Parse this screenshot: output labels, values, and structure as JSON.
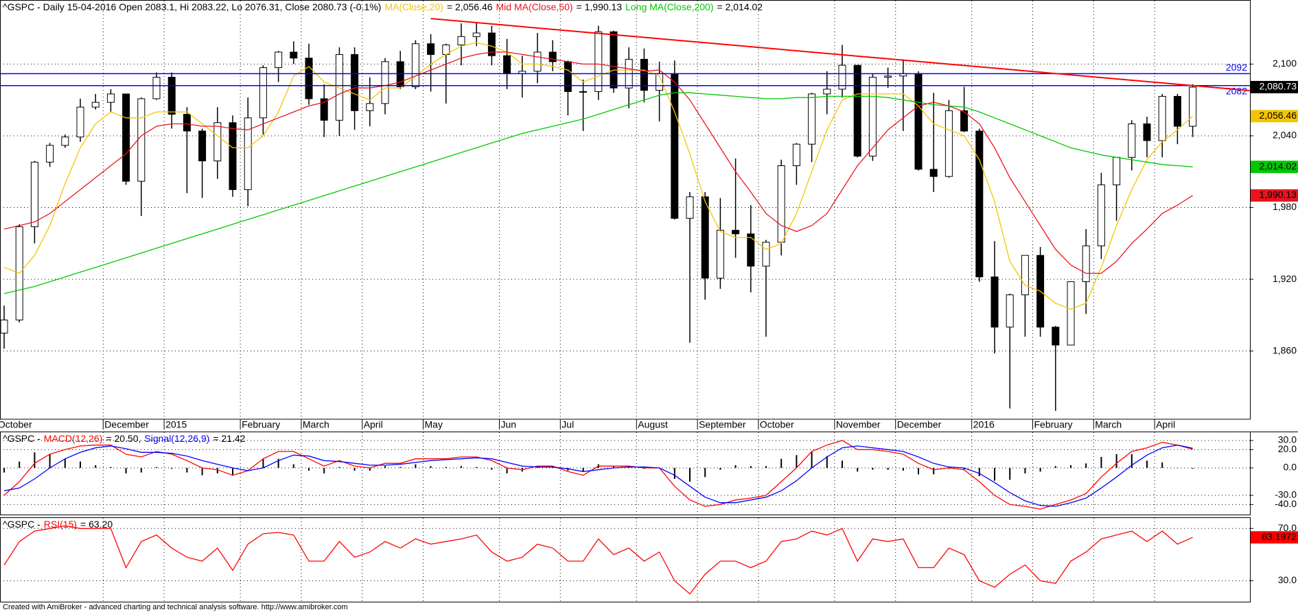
{
  "chart_data": [
    {
      "type": "candlestick",
      "title": "^GSPC - Daily 15-04-2016 Open 2083.1, Hi 2083.22, Lo 2076.31, Close 2080.73 (-0.1%)",
      "color": "#000000",
      "close_label": "2,080.73",
      "categories": [
        "October",
        null,
        null,
        null,
        null,
        null,
        null,
        "December",
        null,
        null,
        null,
        "2015",
        null,
        null,
        null,
        null,
        "February",
        null,
        null,
        null,
        "March",
        null,
        null,
        null,
        "April",
        null,
        null,
        null,
        "May",
        null,
        null,
        null,
        null,
        "Jun",
        null,
        null,
        null,
        "Jul",
        null,
        null,
        null,
        null,
        "August",
        null,
        null,
        null,
        "September",
        null,
        null,
        null,
        "October",
        null,
        null,
        null,
        null,
        "November",
        null,
        null,
        null,
        "December",
        null,
        null,
        null,
        null,
        "2016",
        null,
        null,
        null,
        "February",
        null,
        null,
        null,
        "March",
        null,
        null,
        null,
        "April",
        null,
        null
      ],
      "open": [
        1875,
        1886,
        1964,
        2018,
        2032,
        2039,
        2064,
        2068,
        2075,
        2002,
        2071,
        2089,
        2058,
        2044,
        2019,
        2051,
        1995,
        2055,
        2097,
        2110,
        2105,
        2071,
        2053,
        2108,
        2061,
        2067,
        2102,
        2081,
        2117,
        2108,
        2116,
        2123,
        2126,
        2107,
        2092,
        2094,
        2110,
        2102,
        2077,
        2077,
        2127,
        2080,
        2104,
        2078,
        2092,
        1971,
        1989,
        1921,
        1961,
        1958,
        1931,
        1951,
        2015,
        2033,
        2075,
        2079,
        2099,
        2023,
        2089,
        2090,
        2092,
        2012,
        2006,
        2061,
        2044,
        1922,
        1880,
        1907,
        1940,
        1880,
        1865,
        1918,
        1948,
        1999,
        2022,
        2050,
        2036,
        2073,
        2048
      ],
      "high": [
        1898,
        1966,
        2019,
        2034,
        2041,
        2071,
        2075,
        2079,
        2075,
        2072,
        2093,
        2093,
        2064,
        2046,
        2064,
        2057,
        2072,
        2099,
        2111,
        2119,
        2117,
        2083,
        2114,
        2114,
        2089,
        2105,
        2111,
        2120,
        2125,
        2117,
        2134,
        2135,
        2132,
        2121,
        2107,
        2126,
        2120,
        2103,
        2087,
        2132,
        2128,
        2114,
        2113,
        2102,
        2103,
        1993,
        1993,
        1988,
        2021,
        1982,
        1953,
        2020,
        2034,
        2076,
        2094,
        2116,
        2099,
        2092,
        2097,
        2104,
        2094,
        2076,
        2070,
        2081,
        2046,
        1952,
        1908,
        1940,
        1947,
        1881,
        1918,
        1962,
        2009,
        2022,
        2053,
        2056,
        2075,
        2075,
        2083.22
      ],
      "low": [
        1862,
        1884,
        1950,
        2014,
        2030,
        2035,
        2062,
        2060,
        1999,
        1973,
        2070,
        2046,
        1992,
        1988,
        2004,
        1989,
        1981,
        2041,
        2085,
        2100,
        2066,
        2039,
        2040,
        2045,
        2048,
        2058,
        2079,
        2079,
        2077,
        2067,
        2099,
        2115,
        2099,
        2079,
        2072,
        2084,
        2094,
        2057,
        2044,
        2070,
        2076,
        2063,
        2068,
        2052,
        1970,
        1867,
        1903,
        1912,
        1938,
        1909,
        1872,
        1940,
        1999,
        2018,
        2058,
        2072,
        2022,
        2019,
        2080,
        2044,
        2011,
        1993,
        2005,
        2043,
        1918,
        1858,
        1812,
        1872,
        1872,
        1810,
        1865,
        1891,
        1937,
        1969,
        2011,
        2022,
        2022,
        2033,
        2039
      ],
      "close": [
        1886,
        1964,
        2018,
        2032,
        2039,
        2064,
        2068,
        2075,
        2002,
        2071,
        2089,
        2058,
        2044,
        2019,
        2051,
        1995,
        2055,
        2097,
        2110,
        2105,
        2071,
        2053,
        2108,
        2061,
        2067,
        2102,
        2081,
        2117,
        2108,
        2116,
        2123,
        2126,
        2107,
        2092,
        2094,
        2110,
        2102,
        2077,
        2077,
        2127,
        2080,
        2104,
        2078,
        2092,
        1971,
        1989,
        1921,
        1961,
        1958,
        1931,
        1951,
        2015,
        2033,
        2075,
        2079,
        2099,
        2023,
        2089,
        2090,
        2092,
        2012,
        2006,
        2061,
        2044,
        1922,
        1880,
        1907,
        1940,
        1880,
        1865,
        1918,
        1948,
        1999,
        2022,
        2050,
        2036,
        2073,
        2048,
        2080.73
      ],
      "series": [
        {
          "name": "MA(Close,20)",
          "color": "#f5c400",
          "readout": "= 2,056.46",
          "last_label": "2,056.46",
          "values": [
            1930,
            1925,
            1940,
            1965,
            2000,
            2030,
            2050,
            2060,
            2055,
            2055,
            2060,
            2060,
            2060,
            2050,
            2040,
            2030,
            2030,
            2040,
            2060,
            2090,
            2098,
            2085,
            2080,
            2075,
            2070,
            2080,
            2080,
            2090,
            2100,
            2108,
            2115,
            2118,
            2115,
            2110,
            2100,
            2100,
            2098,
            2095,
            2085,
            2090,
            2095,
            2095,
            2095,
            2090,
            2060,
            2025,
            1985,
            1960,
            1955,
            1955,
            1945,
            1950,
            1975,
            2010,
            2045,
            2070,
            2075,
            2075,
            2075,
            2075,
            2065,
            2050,
            2045,
            2040,
            2020,
            1985,
            1935,
            1915,
            1910,
            1900,
            1895,
            1900,
            1930,
            1965,
            1995,
            2020,
            2035,
            2045,
            2056.46
          ]
        },
        {
          "name": "Mid MA(Close,50)",
          "color": "#e8141e",
          "readout": "= 1,990.13",
          "last_label": "1,990.13",
          "values": [
            1962,
            1965,
            1968,
            1975,
            1985,
            1995,
            2005,
            2015,
            2025,
            2040,
            2048,
            2050,
            2050,
            2048,
            2048,
            2046,
            2045,
            2050,
            2055,
            2060,
            2065,
            2068,
            2075,
            2080,
            2080,
            2082,
            2085,
            2090,
            2095,
            2100,
            2105,
            2108,
            2110,
            2110,
            2108,
            2106,
            2104,
            2102,
            2100,
            2100,
            2098,
            2096,
            2094,
            2095,
            2085,
            2070,
            2050,
            2030,
            2010,
            1993,
            1975,
            1965,
            1960,
            1965,
            1975,
            1995,
            2015,
            2030,
            2045,
            2055,
            2065,
            2068,
            2065,
            2060,
            2050,
            2030,
            2005,
            1985,
            1965,
            1945,
            1932,
            1925,
            1925,
            1935,
            1950,
            1962,
            1975,
            1982,
            1990.13
          ]
        },
        {
          "name": "Long MA(Close,200)",
          "color": "#00c800",
          "readout": "= 2,014.02",
          "last_label": "2,014.02",
          "values": [
            1908,
            1911,
            1914,
            1918,
            1922,
            1926,
            1930,
            1934,
            1938,
            1942,
            1946,
            1950,
            1954,
            1958,
            1962,
            1966,
            1970,
            1974,
            1978,
            1982,
            1986,
            1990,
            1994,
            1998,
            2002,
            2006,
            2010,
            2014,
            2018,
            2022,
            2026,
            2030,
            2034,
            2038,
            2042,
            2045,
            2048,
            2051,
            2054,
            2058,
            2062,
            2066,
            2070,
            2074,
            2076,
            2076,
            2075,
            2074,
            2073,
            2072,
            2071,
            2071,
            2072,
            2072,
            2073,
            2073,
            2073,
            2073,
            2072,
            2070,
            2068,
            2066,
            2065,
            2064,
            2060,
            2055,
            2050,
            2045,
            2040,
            2035,
            2030,
            2027,
            2024,
            2022,
            2020,
            2018,
            2016,
            2015,
            2014.02
          ]
        }
      ],
      "levels": {
        "color": "#0000ff",
        "lines": [
          {
            "value": 2092,
            "label": "2092"
          },
          {
            "value": 2082,
            "label": "2082"
          }
        ]
      },
      "trendline": {
        "color": "#ff0000",
        "from": {
          "category": 28,
          "value": 2138
        },
        "to": {
          "category": 78,
          "value": 2082
        }
      },
      "ylim": [
        1803,
        2153
      ],
      "yticks": [
        {
          "value": 1860,
          "label": "1,860"
        },
        {
          "value": 1920,
          "label": "1,920"
        },
        {
          "value": 1980,
          "label": "1,980"
        },
        {
          "value": 2040,
          "label": "2,040"
        },
        {
          "value": 2100,
          "label": "2,100"
        }
      ],
      "grid": true
    },
    {
      "type": "line",
      "title": "^GSPC -",
      "series": [
        {
          "name": "MACD(12,26)",
          "color": "#ff0000",
          "readout": "= 20.50,",
          "values": [
            -30,
            -15,
            5,
            15,
            20,
            24,
            25,
            25,
            15,
            12,
            18,
            15,
            8,
            0,
            -2,
            -8,
            -3,
            10,
            18,
            18,
            10,
            2,
            8,
            2,
            0,
            5,
            5,
            10,
            10,
            10,
            12,
            12,
            8,
            0,
            -2,
            2,
            2,
            -4,
            -8,
            2,
            2,
            2,
            0,
            0,
            -20,
            -35,
            -42,
            -40,
            -35,
            -33,
            -30,
            -15,
            0,
            18,
            25,
            30,
            20,
            20,
            18,
            15,
            5,
            -2,
            0,
            -2,
            -15,
            -30,
            -40,
            -42,
            -45,
            -40,
            -35,
            -28,
            -10,
            5,
            18,
            22,
            28,
            25,
            20.5
          ]
        },
        {
          "name": "Signal(12,26,9)",
          "color": "#0000ff",
          "readout": "= 21.42",
          "values": [
            -25,
            -22,
            -12,
            0,
            10,
            17,
            22,
            24,
            21,
            17,
            17,
            16,
            13,
            8,
            4,
            0,
            -3,
            0,
            8,
            14,
            13,
            8,
            7,
            5,
            3,
            3,
            4,
            6,
            8,
            9,
            10,
            11,
            10,
            6,
            2,
            1,
            1,
            -1,
            -4,
            -2,
            0,
            1,
            1,
            0,
            -8,
            -20,
            -32,
            -38,
            -38,
            -35,
            -32,
            -25,
            -14,
            0,
            12,
            22,
            24,
            22,
            20,
            18,
            12,
            5,
            1,
            0,
            -6,
            -16,
            -27,
            -36,
            -41,
            -42,
            -38,
            -33,
            -22,
            -10,
            3,
            14,
            22,
            25,
            21.42
          ]
        }
      ],
      "histogram": {
        "color": "#000000",
        "values": [
          -5,
          7,
          17,
          15,
          10,
          7,
          3,
          1,
          -6,
          -5,
          1,
          -1,
          -5,
          -8,
          -6,
          -8,
          0,
          10,
          10,
          4,
          -3,
          -6,
          1,
          -3,
          -3,
          2,
          1,
          4,
          2,
          1,
          2,
          1,
          -2,
          -6,
          -4,
          1,
          1,
          -3,
          -4,
          4,
          2,
          1,
          -1,
          0,
          -12,
          -15,
          -10,
          -2,
          3,
          2,
          2,
          10,
          14,
          18,
          13,
          8,
          -4,
          -2,
          -2,
          -3,
          -7,
          -7,
          -1,
          -2,
          -9,
          -14,
          -13,
          -6,
          -4,
          2,
          3,
          5,
          12,
          15,
          15,
          8,
          6,
          0,
          -0.92
        ]
      },
      "ylim": [
        -51,
        39
      ],
      "yticks": [
        {
          "value": 30,
          "label": "30.0"
        },
        {
          "value": 20,
          "label": "20.0"
        },
        {
          "value": 0,
          "label": "0.0"
        },
        {
          "value": -30,
          "label": "-30.0"
        },
        {
          "value": -40,
          "label": "-40.0"
        }
      ],
      "grid": true
    },
    {
      "type": "line",
      "title": "^GSPC -",
      "series": [
        {
          "name": "RSI(15)",
          "color": "#ff0000",
          "readout": "= 63.20",
          "last_label": "63.1972",
          "values": [
            42,
            60,
            68,
            70,
            72,
            70,
            70,
            70,
            40,
            60,
            65,
            55,
            48,
            45,
            55,
            38,
            58,
            66,
            67,
            65,
            45,
            45,
            60,
            48,
            52,
            60,
            55,
            62,
            58,
            60,
            62,
            65,
            52,
            45,
            48,
            58,
            55,
            45,
            45,
            62,
            50,
            55,
            45,
            52,
            30,
            20,
            35,
            45,
            45,
            40,
            45,
            60,
            62,
            68,
            65,
            70,
            45,
            62,
            60,
            62,
            40,
            40,
            55,
            50,
            30,
            25,
            35,
            42,
            30,
            28,
            45,
            52,
            62,
            65,
            68,
            60,
            68,
            58,
            63.1972
          ]
        }
      ],
      "ylim": [
        14,
        78
      ],
      "yticks": [
        {
          "value": 70,
          "label": "70.0"
        },
        {
          "value": 30,
          "label": "30.0"
        }
      ],
      "grid": true
    }
  ],
  "footer": "Created with AmiBroker - advanced charting and technical analysis software. http://www.amibroker.com"
}
